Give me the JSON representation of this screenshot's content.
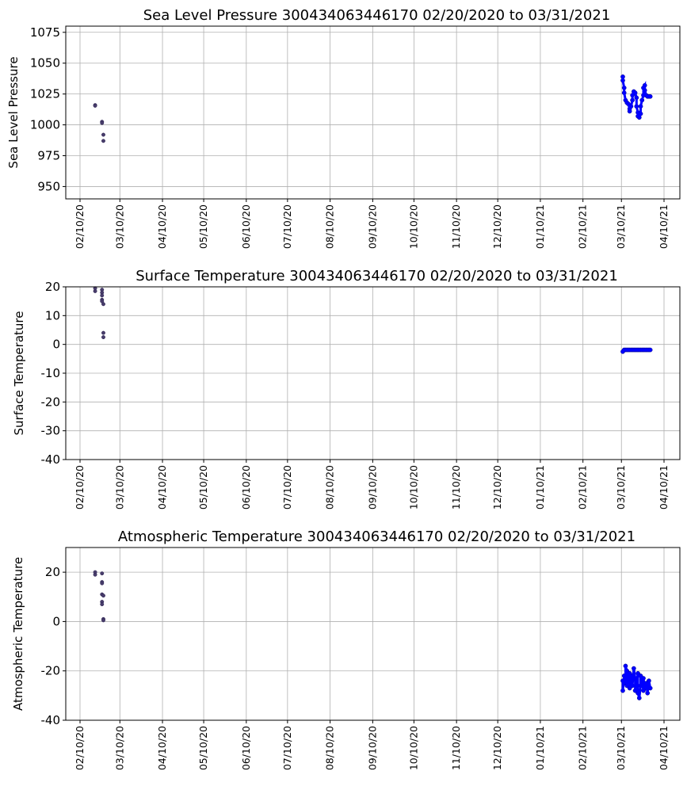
{
  "chart_data": [
    {
      "type": "scatter",
      "title": "Sea Level Pressure 300434063446170  02/20/2020 to 03/31/2021",
      "xlabel": "",
      "ylabel": "Sea Level Pressure",
      "ylim": [
        940,
        1080
      ],
      "yticks": [
        950,
        975,
        1000,
        1025,
        1050,
        1075
      ],
      "x_tick_labels": [
        "02/10/20",
        "03/10/20",
        "04/10/20",
        "05/10/20",
        "06/10/20",
        "07/10/20",
        "08/10/20",
        "09/10/20",
        "10/10/20",
        "11/10/20",
        "12/10/20",
        "01/10/21",
        "02/10/21",
        "03/10/21",
        "04/10/21"
      ],
      "grid": true,
      "series": [
        {
          "color": "#483d6b",
          "points": [
            {
              "x": "2020-02-21",
              "y": 1016
            },
            {
              "x": "2020-02-21",
              "y": 1015.5
            },
            {
              "x": "2020-02-26",
              "y": 1002.5
            },
            {
              "x": "2020-02-26",
              "y": 1001.5
            },
            {
              "x": "2020-02-27",
              "y": 992
            },
            {
              "x": "2020-02-27",
              "y": 987
            }
          ]
        },
        {
          "color": "#0000ff",
          "points": [
            {
              "x": "2021-03-11",
              "y": 1039
            },
            {
              "x": "2021-03-11",
              "y": 1036
            },
            {
              "x": "2021-03-12",
              "y": 1030
            },
            {
              "x": "2021-03-12",
              "y": 1026
            },
            {
              "x": "2021-03-13",
              "y": 1020
            },
            {
              "x": "2021-03-14",
              "y": 1018
            },
            {
              "x": "2021-03-15",
              "y": 1017
            },
            {
              "x": "2021-03-16",
              "y": 1013
            },
            {
              "x": "2021-03-16",
              "y": 1011
            },
            {
              "x": "2021-03-17",
              "y": 1015
            },
            {
              "x": "2021-03-18",
              "y": 1020
            },
            {
              "x": "2021-03-18",
              "y": 1024
            },
            {
              "x": "2021-03-19",
              "y": 1027
            },
            {
              "x": "2021-03-20",
              "y": 1026
            },
            {
              "x": "2021-03-21",
              "y": 1022
            },
            {
              "x": "2021-03-21",
              "y": 1015
            },
            {
              "x": "2021-03-22",
              "y": 1010
            },
            {
              "x": "2021-03-22",
              "y": 1007
            },
            {
              "x": "2021-03-23",
              "y": 1006
            },
            {
              "x": "2021-03-24",
              "y": 1009
            },
            {
              "x": "2021-03-24",
              "y": 1015
            },
            {
              "x": "2021-03-25",
              "y": 1020
            },
            {
              "x": "2021-03-26",
              "y": 1024
            },
            {
              "x": "2021-03-26",
              "y": 1030
            },
            {
              "x": "2021-03-27",
              "y": 1032
            },
            {
              "x": "2021-03-27",
              "y": 1028
            },
            {
              "x": "2021-03-28",
              "y": 1024
            },
            {
              "x": "2021-03-29",
              "y": 1023
            },
            {
              "x": "2021-03-30",
              "y": 1023
            },
            {
              "x": "2021-03-31",
              "y": 1023
            }
          ]
        }
      ]
    },
    {
      "type": "scatter",
      "title": "Surface Temperature 300434063446170  02/20/2020 to 03/31/2021",
      "xlabel": "",
      "ylabel": "Surface Temperature",
      "ylim": [
        -40,
        20
      ],
      "yticks": [
        -40,
        -30,
        -20,
        -10,
        0,
        10,
        20
      ],
      "x_tick_labels": [
        "02/10/20",
        "03/10/20",
        "04/10/20",
        "05/10/20",
        "06/10/20",
        "07/10/20",
        "08/10/20",
        "09/10/20",
        "10/10/20",
        "11/10/20",
        "12/10/20",
        "01/10/21",
        "02/10/21",
        "03/10/21",
        "04/10/21"
      ],
      "grid": true,
      "series": [
        {
          "color": "#483d6b",
          "points": [
            {
              "x": "2020-02-21",
              "y": 19.5
            },
            {
              "x": "2020-02-21",
              "y": 18.5
            },
            {
              "x": "2020-02-26",
              "y": 19
            },
            {
              "x": "2020-02-26",
              "y": 18
            },
            {
              "x": "2020-02-26",
              "y": 17
            },
            {
              "x": "2020-02-26",
              "y": 15.5
            },
            {
              "x": "2020-02-26",
              "y": 15
            },
            {
              "x": "2020-02-27",
              "y": 14
            },
            {
              "x": "2020-02-27",
              "y": 4
            },
            {
              "x": "2020-02-27",
              "y": 2.5
            }
          ]
        },
        {
          "color": "#0000ff",
          "points": [
            {
              "x": "2021-03-11",
              "y": -2.5
            },
            {
              "x": "2021-03-12",
              "y": -1.9
            },
            {
              "x": "2021-03-13",
              "y": -1.9
            },
            {
              "x": "2021-03-14",
              "y": -1.9
            },
            {
              "x": "2021-03-15",
              "y": -1.9
            },
            {
              "x": "2021-03-16",
              "y": -1.9
            },
            {
              "x": "2021-03-17",
              "y": -1.9
            },
            {
              "x": "2021-03-18",
              "y": -1.9
            },
            {
              "x": "2021-03-19",
              "y": -1.9
            },
            {
              "x": "2021-03-20",
              "y": -1.9
            },
            {
              "x": "2021-03-21",
              "y": -1.9
            },
            {
              "x": "2021-03-22",
              "y": -1.9
            },
            {
              "x": "2021-03-23",
              "y": -1.9
            },
            {
              "x": "2021-03-24",
              "y": -1.9
            },
            {
              "x": "2021-03-25",
              "y": -1.9
            },
            {
              "x": "2021-03-26",
              "y": -1.9
            },
            {
              "x": "2021-03-27",
              "y": -1.9
            },
            {
              "x": "2021-03-28",
              "y": -1.9
            },
            {
              "x": "2021-03-29",
              "y": -1.9
            },
            {
              "x": "2021-03-30",
              "y": -1.9
            },
            {
              "x": "2021-03-31",
              "y": -1.9
            }
          ]
        }
      ]
    },
    {
      "type": "scatter",
      "title": "Atmospheric Temperature 300434063446170  02/20/2020 to 03/31/2021",
      "xlabel": "",
      "ylabel": "Atmospheric Temperature",
      "ylim": [
        -40,
        30
      ],
      "yticks": [
        -40,
        -20,
        0,
        20
      ],
      "x_tick_labels": [
        "02/10/20",
        "03/10/20",
        "04/10/20",
        "05/10/20",
        "06/10/20",
        "07/10/20",
        "08/10/20",
        "09/10/20",
        "10/10/20",
        "11/10/20",
        "12/10/20",
        "01/10/21",
        "02/10/21",
        "03/10/21",
        "04/10/21"
      ],
      "grid": true,
      "series": [
        {
          "color": "#483d6b",
          "points": [
            {
              "x": "2020-02-21",
              "y": 20
            },
            {
              "x": "2020-02-21",
              "y": 19
            },
            {
              "x": "2020-02-26",
              "y": 19.5
            },
            {
              "x": "2020-02-26",
              "y": 16
            },
            {
              "x": "2020-02-26",
              "y": 15.5
            },
            {
              "x": "2020-02-26",
              "y": 11
            },
            {
              "x": "2020-02-26",
              "y": 8
            },
            {
              "x": "2020-02-26",
              "y": 7
            },
            {
              "x": "2020-02-27",
              "y": 10.5
            },
            {
              "x": "2020-02-27",
              "y": 1
            },
            {
              "x": "2020-02-27",
              "y": 0.5
            }
          ]
        },
        {
          "color": "#0000ff",
          "points": [
            {
              "x": "2021-03-11",
              "y": -24
            },
            {
              "x": "2021-03-11",
              "y": -28
            },
            {
              "x": "2021-03-12",
              "y": -22
            },
            {
              "x": "2021-03-13",
              "y": -25
            },
            {
              "x": "2021-03-13",
              "y": -18
            },
            {
              "x": "2021-03-14",
              "y": -20
            },
            {
              "x": "2021-03-14",
              "y": -26
            },
            {
              "x": "2021-03-15",
              "y": -23
            },
            {
              "x": "2021-03-16",
              "y": -21
            },
            {
              "x": "2021-03-16",
              "y": -27
            },
            {
              "x": "2021-03-17",
              "y": -24
            },
            {
              "x": "2021-03-18",
              "y": -22
            },
            {
              "x": "2021-03-18",
              "y": -26
            },
            {
              "x": "2021-03-19",
              "y": -19
            },
            {
              "x": "2021-03-20",
              "y": -23
            },
            {
              "x": "2021-03-20",
              "y": -28
            },
            {
              "x": "2021-03-21",
              "y": -25
            },
            {
              "x": "2021-03-22",
              "y": -21
            },
            {
              "x": "2021-03-22",
              "y": -29
            },
            {
              "x": "2021-03-23",
              "y": -31
            },
            {
              "x": "2021-03-24",
              "y": -26
            },
            {
              "x": "2021-03-24",
              "y": -22
            },
            {
              "x": "2021-03-25",
              "y": -24
            },
            {
              "x": "2021-03-26",
              "y": -28
            },
            {
              "x": "2021-03-26",
              "y": -23
            },
            {
              "x": "2021-03-27",
              "y": -27
            },
            {
              "x": "2021-03-28",
              "y": -25
            },
            {
              "x": "2021-03-29",
              "y": -29
            },
            {
              "x": "2021-03-30",
              "y": -24
            },
            {
              "x": "2021-03-31",
              "y": -27
            }
          ]
        }
      ]
    }
  ]
}
